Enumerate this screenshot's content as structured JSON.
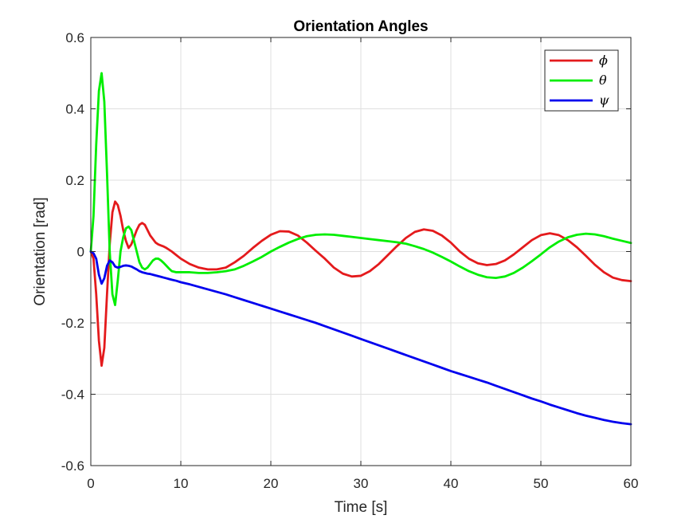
{
  "chart_data": {
    "type": "line",
    "title": "Orientation Angles",
    "xlabel": "Time [s]",
    "ylabel": "Orientation [rad]",
    "xlim": [
      0,
      60
    ],
    "ylim": [
      -0.6,
      0.6
    ],
    "xticks": [
      0,
      10,
      20,
      30,
      40,
      50,
      60
    ],
    "yticks": [
      -0.6,
      -0.4,
      -0.2,
      0,
      0.2,
      0.4,
      0.6
    ],
    "xtick_labels": [
      "0",
      "10",
      "20",
      "30",
      "40",
      "50",
      "60"
    ],
    "ytick_labels": [
      "-0.6",
      "-0.4",
      "-0.2",
      "0",
      "0.2",
      "0.4",
      "0.6"
    ],
    "grid": true,
    "legend_position": "top-right",
    "series": [
      {
        "name": "ϕ",
        "color": "#e41a1c",
        "x": [
          0,
          0.3,
          0.6,
          0.9,
          1.2,
          1.5,
          1.8,
          2.1,
          2.4,
          2.7,
          3.0,
          3.3,
          3.6,
          3.9,
          4.2,
          4.5,
          4.8,
          5.1,
          5.4,
          5.7,
          6.0,
          6.3,
          6.6,
          6.9,
          7.2,
          7.5,
          7.8,
          8.1,
          8.4,
          8.7,
          9.0,
          9.5,
          10,
          11,
          12,
          13,
          14,
          15,
          16,
          17,
          18,
          19,
          20,
          21,
          22,
          23,
          24,
          25,
          26,
          27,
          28,
          29,
          30,
          31,
          32,
          33,
          34,
          35,
          36,
          37,
          38,
          39,
          40,
          41,
          42,
          43,
          44,
          45,
          46,
          47,
          48,
          49,
          50,
          51,
          52,
          53,
          54,
          55,
          56,
          57,
          58,
          59,
          60
        ],
        "values": [
          0,
          -0.02,
          -0.12,
          -0.25,
          -0.32,
          -0.27,
          -0.12,
          0.02,
          0.11,
          0.14,
          0.13,
          0.1,
          0.06,
          0.03,
          0.01,
          0.02,
          0.04,
          0.06,
          0.075,
          0.08,
          0.075,
          0.06,
          0.045,
          0.035,
          0.025,
          0.02,
          0.017,
          0.014,
          0.01,
          0.005,
          0,
          -0.01,
          -0.02,
          -0.035,
          -0.045,
          -0.05,
          -0.05,
          -0.045,
          -0.03,
          -0.012,
          0.01,
          0.03,
          0.047,
          0.057,
          0.056,
          0.045,
          0.025,
          0.002,
          -0.02,
          -0.045,
          -0.062,
          -0.07,
          -0.068,
          -0.055,
          -0.035,
          -0.01,
          0.015,
          0.038,
          0.055,
          0.062,
          0.058,
          0.045,
          0.025,
          0.0,
          -0.02,
          -0.033,
          -0.038,
          -0.035,
          -0.025,
          -0.008,
          0.012,
          0.032,
          0.046,
          0.051,
          0.046,
          0.032,
          0.012,
          -0.012,
          -0.037,
          -0.058,
          -0.073,
          -0.08,
          -0.083
        ]
      },
      {
        "name": "θ",
        "color": "#00ee00",
        "x": [
          0,
          0.3,
          0.6,
          0.9,
          1.2,
          1.5,
          1.8,
          2.1,
          2.4,
          2.7,
          3.0,
          3.3,
          3.6,
          3.9,
          4.2,
          4.5,
          4.8,
          5.1,
          5.4,
          5.7,
          6.0,
          6.3,
          6.6,
          6.9,
          7.2,
          7.5,
          7.8,
          8.1,
          8.4,
          8.7,
          9.0,
          9.5,
          10,
          11,
          12,
          13,
          14,
          15,
          16,
          17,
          18,
          19,
          20,
          21,
          22,
          23,
          24,
          25,
          26,
          27,
          28,
          29,
          30,
          31,
          32,
          33,
          34,
          35,
          36,
          37,
          38,
          39,
          40,
          41,
          42,
          43,
          44,
          45,
          46,
          47,
          48,
          49,
          50,
          51,
          52,
          53,
          54,
          55,
          56,
          57,
          58,
          59,
          60
        ],
        "values": [
          0,
          0.1,
          0.3,
          0.45,
          0.5,
          0.42,
          0.22,
          0.0,
          -0.12,
          -0.15,
          -0.08,
          0.0,
          0.04,
          0.065,
          0.07,
          0.06,
          0.03,
          0.0,
          -0.03,
          -0.045,
          -0.05,
          -0.045,
          -0.035,
          -0.025,
          -0.02,
          -0.02,
          -0.025,
          -0.032,
          -0.04,
          -0.048,
          -0.055,
          -0.058,
          -0.058,
          -0.058,
          -0.06,
          -0.06,
          -0.058,
          -0.055,
          -0.05,
          -0.04,
          -0.028,
          -0.015,
          0.0,
          0.013,
          0.025,
          0.035,
          0.043,
          0.047,
          0.048,
          0.047,
          0.044,
          0.041,
          0.038,
          0.035,
          0.032,
          0.029,
          0.026,
          0.022,
          0.015,
          0.007,
          -0.003,
          -0.015,
          -0.028,
          -0.042,
          -0.055,
          -0.065,
          -0.072,
          -0.074,
          -0.07,
          -0.06,
          -0.045,
          -0.027,
          -0.008,
          0.012,
          0.028,
          0.04,
          0.047,
          0.05,
          0.048,
          0.043,
          0.036,
          0.03,
          0.024
        ]
      },
      {
        "name": "ψ",
        "color": "#0000ee",
        "x": [
          0,
          0.3,
          0.6,
          0.9,
          1.2,
          1.5,
          1.8,
          2.1,
          2.4,
          2.7,
          3.0,
          3.3,
          3.6,
          3.9,
          4.2,
          4.5,
          4.8,
          5.1,
          5.4,
          5.7,
          6.0,
          6.3,
          6.6,
          6.9,
          7.2,
          7.5,
          7.8,
          8.1,
          8.4,
          8.7,
          9.0,
          9.5,
          10,
          11,
          12,
          13,
          14,
          15,
          16,
          17,
          18,
          19,
          20,
          21,
          22,
          23,
          24,
          25,
          26,
          27,
          28,
          29,
          30,
          31,
          32,
          33,
          34,
          35,
          36,
          37,
          38,
          39,
          40,
          41,
          42,
          43,
          44,
          45,
          46,
          47,
          48,
          49,
          50,
          51,
          52,
          53,
          54,
          55,
          56,
          57,
          58,
          59,
          60
        ],
        "values": [
          0,
          -0.005,
          -0.02,
          -0.065,
          -0.09,
          -0.075,
          -0.04,
          -0.025,
          -0.03,
          -0.042,
          -0.045,
          -0.043,
          -0.04,
          -0.039,
          -0.04,
          -0.042,
          -0.046,
          -0.05,
          -0.055,
          -0.058,
          -0.06,
          -0.062,
          -0.063,
          -0.065,
          -0.067,
          -0.069,
          -0.071,
          -0.073,
          -0.075,
          -0.077,
          -0.079,
          -0.082,
          -0.086,
          -0.092,
          -0.099,
          -0.106,
          -0.113,
          -0.12,
          -0.128,
          -0.136,
          -0.144,
          -0.152,
          -0.16,
          -0.168,
          -0.176,
          -0.184,
          -0.192,
          -0.2,
          -0.209,
          -0.218,
          -0.227,
          -0.236,
          -0.245,
          -0.254,
          -0.263,
          -0.272,
          -0.281,
          -0.29,
          -0.299,
          -0.308,
          -0.317,
          -0.326,
          -0.335,
          -0.343,
          -0.351,
          -0.359,
          -0.367,
          -0.376,
          -0.385,
          -0.394,
          -0.403,
          -0.412,
          -0.42,
          -0.429,
          -0.437,
          -0.445,
          -0.453,
          -0.46,
          -0.466,
          -0.472,
          -0.477,
          -0.481,
          -0.484
        ]
      }
    ]
  }
}
